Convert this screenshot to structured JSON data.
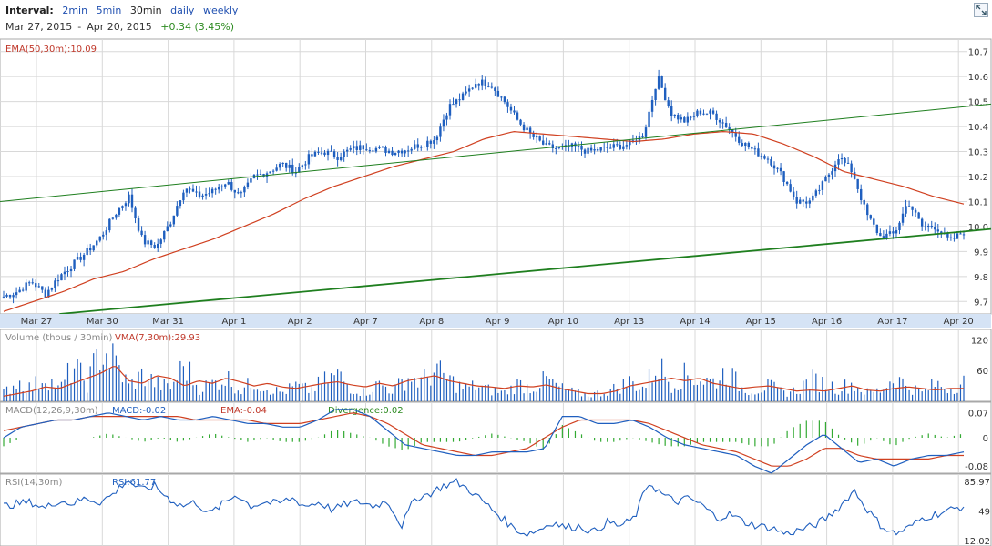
{
  "header": {
    "interval_label": "Interval:",
    "intervals": [
      {
        "label": "2min",
        "link": true
      },
      {
        "label": "5min",
        "link": true
      },
      {
        "label": "30min",
        "link": false
      },
      {
        "label": "daily",
        "link": true
      },
      {
        "label": "weekly",
        "link": true
      }
    ],
    "start_date": "Mar 27, 2015",
    "separator": "-",
    "end_date": "Apr 20, 2015",
    "change": "+0.34 (3.45%)"
  },
  "colors": {
    "price": "#1f5fbf",
    "ema": "#d04020",
    "trend": "#1f7f1f",
    "grid": "#d8d8d8",
    "axis_band": "#d5e3f5",
    "divergence": "#33aa33"
  },
  "icons": {
    "expand": "expand-icon"
  },
  "chart_data": [
    {
      "type": "candlestick",
      "panel": "price",
      "legend": "EMA(50,30m):10.09",
      "ylim": [
        9.65,
        10.75
      ],
      "yticks": [
        9.7,
        9.8,
        9.9,
        10.0,
        10.1,
        10.2,
        10.3,
        10.4,
        10.5,
        10.6,
        10.7
      ],
      "ytick_labels": [
        "9.7",
        "9.8",
        "9.9",
        "10.0",
        "10.1",
        "10.2",
        "10.3",
        "10.4",
        "10.5",
        "10.6",
        "10.7"
      ],
      "xlabels": [
        "Mar 27",
        "Mar 30",
        "Mar 31",
        "Apr 1",
        "Apr 2",
        "Apr 7",
        "Apr 8",
        "Apr 9",
        "Apr 10",
        "Apr 13",
        "Apr 14",
        "Apr 15",
        "Apr 16",
        "Apr 17",
        "Apr 20"
      ],
      "price_anchors": [
        9.72,
        9.74,
        9.78,
        9.73,
        9.8,
        9.85,
        9.9,
        9.96,
        10.05,
        10.12,
        9.94,
        9.92,
        10.02,
        10.16,
        10.12,
        10.14,
        10.18,
        10.12,
        10.2,
        10.22,
        10.25,
        10.22,
        10.28,
        10.3,
        10.28,
        10.31,
        10.32,
        10.31,
        10.3,
        10.31,
        10.33,
        10.35,
        10.48,
        10.52,
        10.58,
        10.57,
        10.5,
        10.42,
        10.36,
        10.32,
        10.31,
        10.32,
        10.3,
        10.31,
        10.32,
        10.33,
        10.37,
        10.6,
        10.45,
        10.42,
        10.46,
        10.45,
        10.4,
        10.34,
        10.3,
        10.27,
        10.2,
        10.1,
        10.1,
        10.18,
        10.28,
        10.22,
        10.05,
        9.96,
        9.97,
        10.1,
        10.0,
        10.0,
        9.94,
        9.98
      ],
      "ema_anchors": [
        9.66,
        9.7,
        9.74,
        9.79,
        9.82,
        9.87,
        9.91,
        9.95,
        10.0,
        10.05,
        10.11,
        10.16,
        10.2,
        10.24,
        10.27,
        10.3,
        10.35,
        10.38,
        10.37,
        10.36,
        10.35,
        10.34,
        10.35,
        10.37,
        10.38,
        10.37,
        10.33,
        10.28,
        10.22,
        10.19,
        10.16,
        10.12,
        10.09
      ]
    },
    {
      "type": "line",
      "panel": "trendlines",
      "lines": [
        {
          "x": [
            0,
            1.0
          ],
          "y": [
            10.1,
            10.49
          ]
        },
        {
          "x": [
            0.06,
            1.0
          ],
          "y": [
            9.65,
            9.99
          ]
        }
      ]
    },
    {
      "type": "bar",
      "panel": "volume",
      "legend_left": "Volume (thous / 30min)",
      "legend_right": "VMA(7,30m):29.93",
      "ylim": [
        0,
        140
      ],
      "yticks": [
        60,
        120
      ],
      "ytick_labels": [
        "60",
        "120"
      ],
      "volume_anchors": [
        20,
        45,
        30,
        60,
        25,
        80,
        40,
        120,
        90,
        35,
        60,
        40,
        30,
        85,
        30,
        40,
        55,
        25,
        45,
        30,
        20,
        35,
        25,
        45,
        60,
        30,
        20,
        40,
        25,
        55,
        45,
        70,
        50,
        30,
        35,
        25,
        20,
        40,
        30,
        50,
        30,
        20,
        15,
        20,
        30,
        45,
        30,
        85,
        40,
        60,
        50,
        45,
        70,
        30,
        25,
        35,
        20,
        25,
        50,
        40,
        30,
        40,
        20,
        25,
        55,
        35,
        20,
        40,
        30,
        45
      ],
      "vma_anchors": [
        10,
        15,
        20,
        28,
        25,
        35,
        45,
        55,
        70,
        40,
        35,
        50,
        45,
        30,
        40,
        35,
        45,
        38,
        30,
        35,
        28,
        25,
        30,
        35,
        38,
        32,
        28,
        35,
        30,
        40,
        45,
        50,
        40,
        35,
        30,
        28,
        25,
        30,
        28,
        32,
        25,
        20,
        15,
        15,
        20,
        30,
        35,
        40,
        45,
        40,
        45,
        35,
        30,
        25,
        28,
        30,
        25,
        20,
        22,
        20,
        25,
        30,
        22,
        20,
        25,
        28,
        25,
        22,
        25,
        25
      ]
    },
    {
      "type": "line",
      "panel": "macd",
      "legend_left": "MACD(12,26,9,30m)",
      "macd_label": "MACD:-0.02",
      "ema_label": "EMA:-0.04",
      "divergence_label": "Divergence:0.02",
      "ylim": [
        -0.1,
        0.1
      ],
      "yticks": [
        0.07,
        0,
        -0.08
      ],
      "ytick_labels": [
        "0.07",
        "0",
        "-0.08"
      ],
      "macd_anchors": [
        0.0,
        0.03,
        0.04,
        0.05,
        0.05,
        0.06,
        0.07,
        0.06,
        0.05,
        0.06,
        0.05,
        0.05,
        0.06,
        0.05,
        0.04,
        0.04,
        0.03,
        0.03,
        0.05,
        0.08,
        0.08,
        0.06,
        0.02,
        -0.02,
        -0.03,
        -0.04,
        -0.05,
        -0.05,
        -0.04,
        -0.04,
        -0.04,
        -0.03,
        0.06,
        0.06,
        0.04,
        0.04,
        0.05,
        0.03,
        0.0,
        -0.02,
        -0.03,
        -0.04,
        -0.05,
        -0.08,
        -0.1,
        -0.06,
        -0.02,
        0.01,
        -0.03,
        -0.07,
        -0.06,
        -0.08,
        -0.06,
        -0.05,
        -0.05,
        -0.04
      ],
      "signal_anchors": [
        0.02,
        0.03,
        0.04,
        0.05,
        0.05,
        0.06,
        0.06,
        0.06,
        0.06,
        0.06,
        0.06,
        0.05,
        0.05,
        0.05,
        0.05,
        0.04,
        0.04,
        0.04,
        0.05,
        0.06,
        0.07,
        0.06,
        0.04,
        0.01,
        -0.02,
        -0.03,
        -0.04,
        -0.05,
        -0.05,
        -0.04,
        -0.03,
        0.0,
        0.03,
        0.05,
        0.05,
        0.05,
        0.05,
        0.04,
        0.02,
        0.0,
        -0.02,
        -0.03,
        -0.04,
        -0.06,
        -0.08,
        -0.08,
        -0.06,
        -0.03,
        -0.03,
        -0.05,
        -0.06,
        -0.06,
        -0.06,
        -0.06,
        -0.05,
        -0.05
      ]
    },
    {
      "type": "line",
      "panel": "rsi",
      "legend_left": "RSI(14,30m)",
      "rsi_label": "RSI:61.77",
      "ylim": [
        5,
        95
      ],
      "yticks": [
        85.97,
        49,
        12.02
      ],
      "ytick_labels": [
        "85.97",
        "49",
        "12.02"
      ],
      "rsi_anchors": [
        55,
        58,
        60,
        52,
        62,
        58,
        65,
        60,
        70,
        88,
        75,
        80,
        65,
        55,
        60,
        45,
        58,
        70,
        55,
        60,
        58,
        65,
        55,
        60,
        50,
        58,
        60,
        55,
        62,
        30,
        65,
        70,
        80,
        85,
        75,
        60,
        45,
        30,
        20,
        25,
        35,
        28,
        30,
        22,
        35,
        30,
        40,
        85,
        70,
        60,
        65,
        55,
        40,
        45,
        35,
        30,
        28,
        20,
        25,
        30,
        40,
        55,
        75,
        50,
        30,
        20,
        28,
        40,
        45,
        50,
        55
      ]
    }
  ]
}
